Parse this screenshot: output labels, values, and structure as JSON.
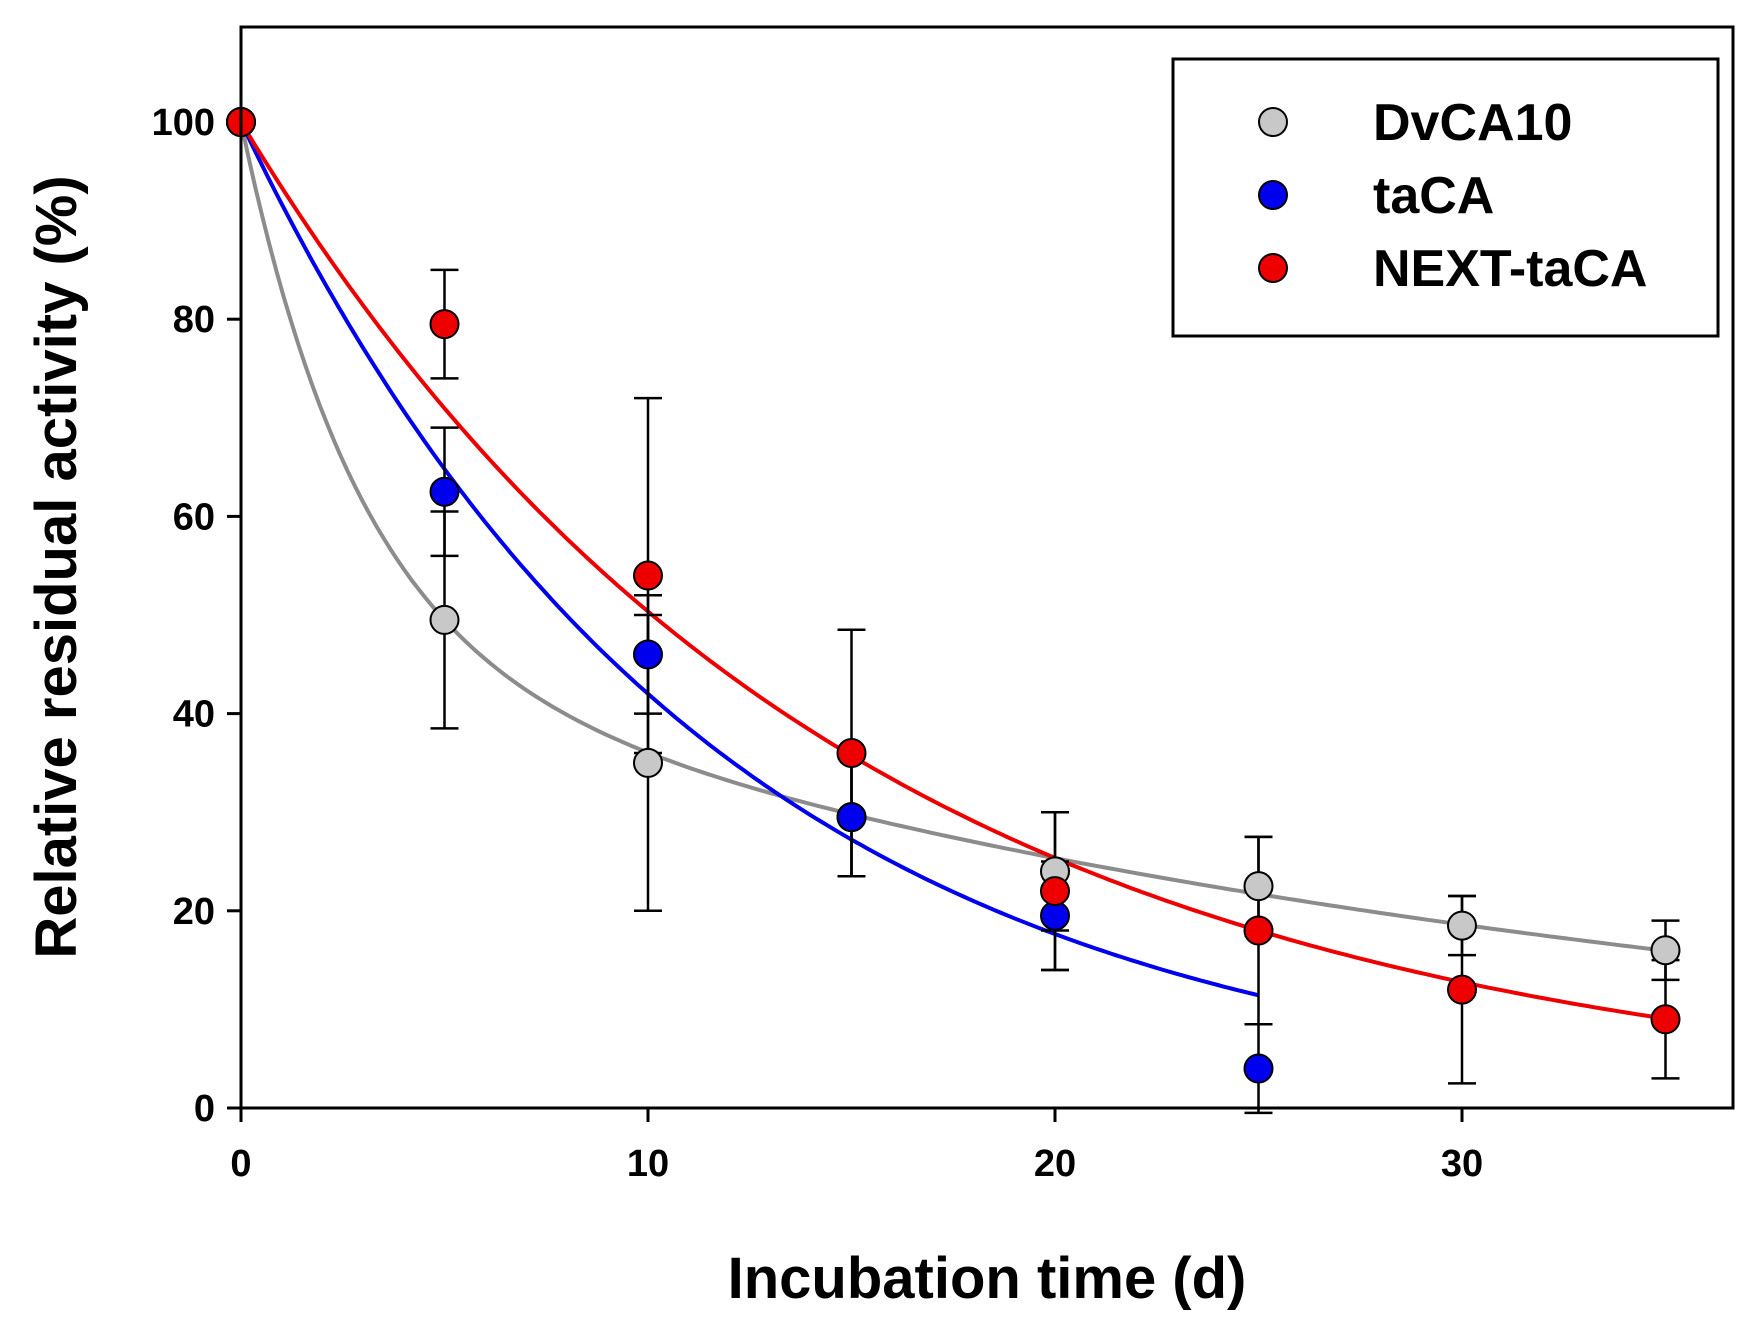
{
  "chart_data": {
    "type": "scatter",
    "title": "",
    "xlabel": "Incubation time (d)",
    "ylabel": "Relative residual activity (%)",
    "xlim": [
      0,
      37
    ],
    "ylim": [
      0,
      110
    ],
    "x_ticks": [
      0,
      10,
      20,
      30
    ],
    "y_ticks": [
      0,
      20,
      40,
      60,
      80,
      100
    ],
    "grid": false,
    "legend_position": "top-right",
    "series": [
      {
        "name": "DvCA10",
        "color": "#c8c8c8",
        "line_color": "#8c8c8c",
        "x": [
          0,
          5,
          10,
          15,
          20,
          25,
          30,
          35
        ],
        "y": [
          100,
          49.5,
          35,
          29.5,
          24,
          22.5,
          18.5,
          16
        ],
        "error": [
          0,
          11,
          15,
          6,
          6,
          5,
          3,
          3
        ],
        "fit": "biexponential"
      },
      {
        "name": "taCA",
        "color": "#0000ee",
        "line_color": "#0000ee",
        "x": [
          0,
          5,
          10,
          15,
          20,
          25
        ],
        "y": [
          100,
          62.5,
          46,
          29.5,
          19.5,
          4
        ],
        "error": [
          0,
          6.5,
          6,
          6,
          5.5,
          4.5
        ],
        "fit": "exponential"
      },
      {
        "name": "NEXT-taCA",
        "color": "#ee0000",
        "line_color": "#ee0000",
        "x": [
          0,
          5,
          10,
          15,
          20,
          25,
          30,
          35
        ],
        "y": [
          100,
          79.5,
          54,
          36,
          22,
          18,
          12,
          9
        ],
        "error": [
          0,
          5.5,
          18,
          12.5,
          8,
          9.5,
          9.5,
          6
        ],
        "fit": "exponential"
      }
    ]
  }
}
